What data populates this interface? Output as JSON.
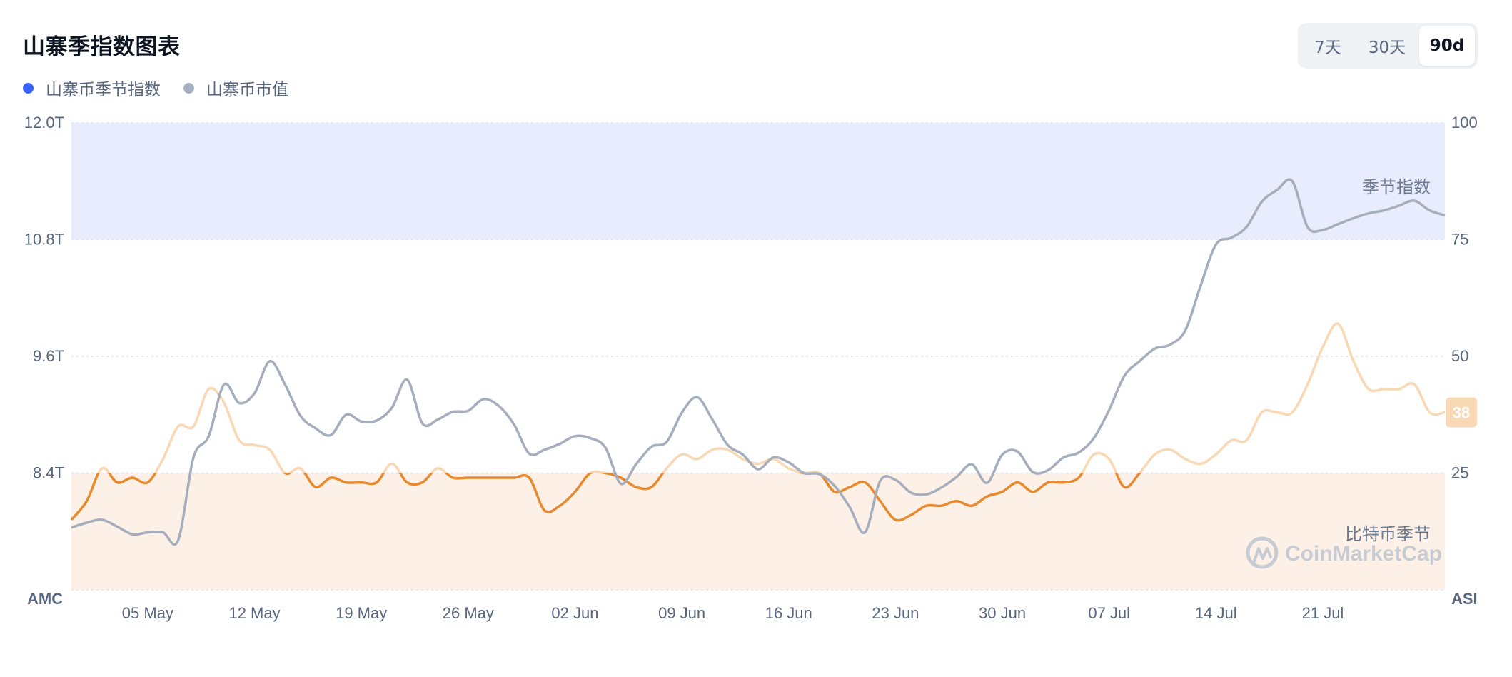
{
  "header": {
    "title": "山寨季指数图表",
    "ranges": [
      {
        "label": "7天",
        "active": false
      },
      {
        "label": "30天",
        "active": false
      },
      {
        "label": "90d",
        "active": true
      }
    ]
  },
  "legend": [
    {
      "label": "山寨币季节指数",
      "color": "#3861fb"
    },
    {
      "label": "山寨币市值",
      "color": "#a6b0c3"
    }
  ],
  "zones": {
    "top_label": "季节指数",
    "bottom_label": "比特币季节",
    "top_color": "#e8ecfc",
    "bottom_color": "#fdf1e7"
  },
  "watermark": "CoinMarketCap",
  "current_badge": "38",
  "colors": {
    "asi_line": "#e8892e",
    "asi_line_faded": "#f8d8b5",
    "amc_line": "#a6adbd"
  },
  "chart_data": {
    "type": "line",
    "x_labels": [
      "05 May",
      "12 May",
      "19 May",
      "26 May",
      "02 Jun",
      "09 Jun",
      "16 Jun",
      "23 Jun",
      "30 Jun",
      "07 Jul",
      "14 Jul",
      "21 Jul"
    ],
    "x_range": [
      0,
      90
    ],
    "x_label_days": [
      5,
      12,
      19,
      26,
      33,
      40,
      47,
      54,
      61,
      68,
      75,
      82
    ],
    "left_axis": {
      "title": "AMC",
      "ticks": [
        "12.0T",
        "10.8T",
        "9.6T",
        "8.4T"
      ],
      "tick_values": [
        12.0,
        10.8,
        9.6,
        8.4
      ],
      "range": [
        7.2,
        12.0
      ]
    },
    "right_axis": {
      "title": "ASI",
      "ticks": [
        "100",
        "75",
        "50",
        "25"
      ],
      "tick_values": [
        100,
        75,
        50,
        25
      ],
      "range": [
        0,
        100
      ]
    },
    "series": [
      {
        "name": "山寨币季节指数",
        "axis": "right",
        "x": [
          0,
          1,
          2,
          3,
          4,
          5,
          6,
          7,
          8,
          9,
          10,
          11,
          12,
          13,
          14,
          15,
          16,
          17,
          18,
          19,
          20,
          21,
          22,
          23,
          24,
          25,
          26,
          27,
          28,
          29,
          30,
          31,
          32,
          33,
          34,
          35,
          36,
          37,
          38,
          39,
          40,
          41,
          42,
          43,
          44,
          45,
          46,
          47,
          48,
          49,
          50,
          51,
          52,
          53,
          54,
          55,
          56,
          57,
          58,
          59,
          60,
          61,
          62,
          63,
          64,
          65,
          66,
          67,
          68,
          69,
          70,
          71,
          72,
          73,
          74,
          75,
          76,
          77,
          78,
          79,
          80,
          81,
          82,
          83,
          84,
          85,
          86,
          87,
          88,
          89,
          90
        ],
        "y": [
          15,
          19,
          26,
          23,
          24,
          23,
          28,
          35,
          35,
          43,
          40,
          32,
          31,
          30,
          25,
          26,
          22,
          24,
          23,
          23,
          23,
          27,
          23,
          23,
          26,
          24,
          24,
          24,
          24,
          24,
          24,
          17,
          18,
          21,
          25,
          25,
          24,
          22,
          22,
          26,
          29,
          28,
          30,
          30,
          28,
          27,
          28,
          26,
          25,
          25,
          21,
          22,
          23,
          19,
          15,
          16,
          18,
          18,
          19,
          18,
          20,
          21,
          23,
          21,
          23,
          23,
          24,
          29,
          28,
          22,
          25,
          29,
          30,
          28,
          27,
          29,
          32,
          32,
          38,
          38,
          38,
          44,
          52,
          57,
          49,
          43,
          43,
          43,
          44,
          38,
          38
        ]
      },
      {
        "name": "山寨币市值",
        "axis": "left",
        "x": [
          0,
          1,
          2,
          3,
          4,
          5,
          6,
          7,
          8,
          9,
          10,
          11,
          12,
          13,
          14,
          15,
          16,
          17,
          18,
          19,
          20,
          21,
          22,
          23,
          24,
          25,
          26,
          27,
          28,
          29,
          30,
          31,
          32,
          33,
          34,
          35,
          36,
          37,
          38,
          39,
          40,
          41,
          42,
          43,
          44,
          45,
          46,
          47,
          48,
          49,
          50,
          51,
          52,
          53,
          54,
          55,
          56,
          57,
          58,
          59,
          60,
          61,
          62,
          63,
          64,
          65,
          66,
          67,
          68,
          69,
          70,
          71,
          72,
          73,
          74,
          75,
          76,
          77,
          78,
          79,
          80,
          81,
          82,
          83,
          84,
          85,
          86,
          87,
          88,
          89,
          90
        ],
        "y": [
          7.84,
          7.89,
          7.92,
          7.85,
          7.77,
          7.79,
          7.79,
          7.71,
          8.56,
          8.78,
          9.31,
          9.12,
          9.22,
          9.55,
          9.31,
          8.99,
          8.86,
          8.79,
          9.0,
          8.93,
          8.94,
          9.07,
          9.36,
          8.91,
          8.95,
          9.03,
          9.04,
          9.16,
          9.09,
          8.9,
          8.6,
          8.64,
          8.7,
          8.78,
          8.76,
          8.66,
          8.29,
          8.49,
          8.67,
          8.72,
          9.02,
          9.18,
          8.95,
          8.69,
          8.59,
          8.44,
          8.56,
          8.51,
          8.4,
          8.39,
          8.27,
          8.05,
          7.79,
          8.32,
          8.33,
          8.2,
          8.18,
          8.25,
          8.36,
          8.49,
          8.3,
          8.59,
          8.62,
          8.41,
          8.43,
          8.56,
          8.61,
          8.76,
          9.05,
          9.4,
          9.55,
          9.68,
          9.72,
          9.87,
          10.33,
          10.75,
          10.82,
          10.93,
          11.19,
          11.31,
          11.4,
          10.93,
          10.9,
          10.96,
          11.02,
          11.07,
          11.1,
          11.15,
          11.2,
          11.1,
          11.05
        ]
      }
    ]
  }
}
